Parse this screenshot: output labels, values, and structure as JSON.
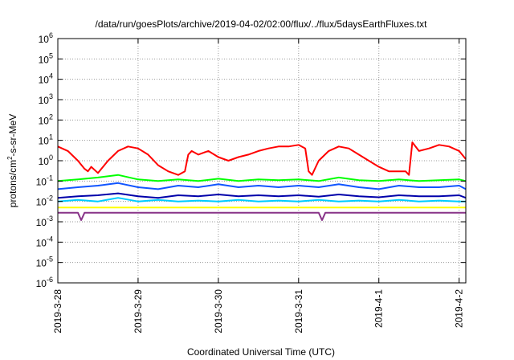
{
  "chart_data": {
    "type": "line",
    "title": "/data/run/goesPlots/archive/2019-04-02/02:00/flux/../flux/5daysEarthFluxes.txt",
    "xlabel": "Coordinated Universal Time (UTC)",
    "ylabel_parts": {
      "base": "protons/cm",
      "sup": "2",
      "rest": "-s-sr-MeV"
    },
    "x_scale": "time",
    "y_scale": "log",
    "xlim": [
      "2019-03-28 00:00",
      "2019-04-02 02:00"
    ],
    "ylim": [
      1e-06,
      1000000.0
    ],
    "grid": true,
    "legend": "none",
    "x_ticks": [
      {
        "date": "2019-03-28 00:00",
        "label": "2019-3-28"
      },
      {
        "date": "2019-03-29 00:00",
        "label": "2019-3-29"
      },
      {
        "date": "2019-03-30 00:00",
        "label": "2019-3-30"
      },
      {
        "date": "2019-03-31 00:00",
        "label": "2019-3-31"
      },
      {
        "date": "2019-04-01 00:00",
        "label": "2019-4-1"
      },
      {
        "date": "2019-04-02 00:00",
        "label": "2019-4-2"
      }
    ],
    "y_ticks": [
      {
        "value": 1000000.0,
        "base": "10",
        "exp": "6"
      },
      {
        "value": 100000.0,
        "base": "10",
        "exp": "5"
      },
      {
        "value": 10000.0,
        "base": "10",
        "exp": "4"
      },
      {
        "value": 1000.0,
        "base": "10",
        "exp": "3"
      },
      {
        "value": 100.0,
        "base": "10",
        "exp": "2"
      },
      {
        "value": 10.0,
        "base": "10",
        "exp": "1"
      },
      {
        "value": 1.0,
        "base": "10",
        "exp": "0"
      },
      {
        "value": 0.1,
        "base": "10",
        "exp": "-1"
      },
      {
        "value": 0.01,
        "base": "10",
        "exp": "-2"
      },
      {
        "value": 0.001,
        "base": "10",
        "exp": "-3"
      },
      {
        "value": 0.0001,
        "base": "10",
        "exp": "-4"
      },
      {
        "value": 1e-05,
        "base": "10",
        "exp": "-5"
      },
      {
        "value": 1e-06,
        "base": "10",
        "exp": "-6"
      }
    ],
    "series": [
      {
        "color": "#ff0000",
        "x": [
          "2019-03-28 00:00",
          "2019-03-28 03:00",
          "2019-03-28 06:00",
          "2019-03-28 08:00",
          "2019-03-28 09:00",
          "2019-03-28 10:00",
          "2019-03-28 12:00",
          "2019-03-28 15:00",
          "2019-03-28 18:00",
          "2019-03-28 21:00",
          "2019-03-29 00:00",
          "2019-03-29 03:00",
          "2019-03-29 06:00",
          "2019-03-29 09:00",
          "2019-03-29 12:00",
          "2019-03-29 14:00",
          "2019-03-29 15:00",
          "2019-03-29 16:00",
          "2019-03-29 18:00",
          "2019-03-29 21:00",
          "2019-03-30 00:00",
          "2019-03-30 03:00",
          "2019-03-30 06:00",
          "2019-03-30 09:00",
          "2019-03-30 12:00",
          "2019-03-30 15:00",
          "2019-03-30 18:00",
          "2019-03-30 21:00",
          "2019-03-31 00:00",
          "2019-03-31 02:00",
          "2019-03-31 03:00",
          "2019-03-31 04:00",
          "2019-03-31 06:00",
          "2019-03-31 09:00",
          "2019-03-31 12:00",
          "2019-03-31 15:00",
          "2019-03-31 18:00",
          "2019-03-31 21:00",
          "2019-04-01 00:00",
          "2019-04-01 03:00",
          "2019-04-01 06:00",
          "2019-04-01 08:00",
          "2019-04-01 09:00",
          "2019-04-01 10:00",
          "2019-04-01 12:00",
          "2019-04-01 15:00",
          "2019-04-01 18:00",
          "2019-04-01 21:00",
          "2019-04-02 00:00",
          "2019-04-02 02:00"
        ],
        "values": [
          5,
          3,
          1,
          0.4,
          0.3,
          0.5,
          0.25,
          1,
          3,
          5,
          4,
          2,
          0.6,
          0.3,
          0.2,
          0.3,
          2,
          3,
          2,
          3,
          1.5,
          1,
          1.5,
          2,
          3,
          4,
          5,
          5,
          6,
          4,
          0.3,
          0.2,
          1,
          3,
          5,
          4,
          2,
          1,
          0.5,
          0.3,
          0.3,
          0.3,
          0.2,
          8,
          3,
          4,
          6,
          5,
          3,
          1.2
        ]
      },
      {
        "color": "#00ff00",
        "x": [
          "2019-03-28 00:00",
          "2019-03-28 06:00",
          "2019-03-28 12:00",
          "2019-03-28 18:00",
          "2019-03-29 00:00",
          "2019-03-29 06:00",
          "2019-03-29 12:00",
          "2019-03-29 18:00",
          "2019-03-30 00:00",
          "2019-03-30 06:00",
          "2019-03-30 12:00",
          "2019-03-30 18:00",
          "2019-03-31 00:00",
          "2019-03-31 06:00",
          "2019-03-31 12:00",
          "2019-03-31 18:00",
          "2019-04-01 00:00",
          "2019-04-01 06:00",
          "2019-04-01 12:00",
          "2019-04-01 18:00",
          "2019-04-02 00:00",
          "2019-04-02 02:00"
        ],
        "values": [
          0.1,
          0.12,
          0.15,
          0.2,
          0.12,
          0.1,
          0.12,
          0.1,
          0.13,
          0.1,
          0.12,
          0.11,
          0.12,
          0.1,
          0.15,
          0.11,
          0.1,
          0.12,
          0.1,
          0.11,
          0.12,
          0.1
        ]
      },
      {
        "color": "#00ccff",
        "x": [
          "2019-03-28 00:00",
          "2019-03-28 06:00",
          "2019-03-28 12:00",
          "2019-03-28 18:00",
          "2019-03-29 00:00",
          "2019-03-29 06:00",
          "2019-03-29 12:00",
          "2019-03-29 18:00",
          "2019-03-30 00:00",
          "2019-03-30 06:00",
          "2019-03-30 12:00",
          "2019-03-30 18:00",
          "2019-03-31 00:00",
          "2019-03-31 06:00",
          "2019-03-31 12:00",
          "2019-03-31 18:00",
          "2019-04-01 00:00",
          "2019-04-01 06:00",
          "2019-04-01 12:00",
          "2019-04-01 18:00",
          "2019-04-02 00:00",
          "2019-04-02 02:00"
        ],
        "values": [
          0.01,
          0.012,
          0.01,
          0.015,
          0.01,
          0.012,
          0.01,
          0.011,
          0.01,
          0.012,
          0.01,
          0.011,
          0.01,
          0.012,
          0.01,
          0.011,
          0.01,
          0.012,
          0.01,
          0.011,
          0.01,
          0.01
        ]
      },
      {
        "color": "#1155ff",
        "x": [
          "2019-03-28 00:00",
          "2019-03-28 06:00",
          "2019-03-28 12:00",
          "2019-03-28 18:00",
          "2019-03-29 00:00",
          "2019-03-29 06:00",
          "2019-03-29 12:00",
          "2019-03-29 18:00",
          "2019-03-30 00:00",
          "2019-03-30 06:00",
          "2019-03-30 12:00",
          "2019-03-30 18:00",
          "2019-03-31 00:00",
          "2019-03-31 06:00",
          "2019-03-31 12:00",
          "2019-03-31 18:00",
          "2019-04-01 00:00",
          "2019-04-01 06:00",
          "2019-04-01 12:00",
          "2019-04-01 18:00",
          "2019-04-02 00:00",
          "2019-04-02 02:00"
        ],
        "values": [
          0.04,
          0.05,
          0.06,
          0.08,
          0.05,
          0.04,
          0.06,
          0.05,
          0.07,
          0.05,
          0.06,
          0.05,
          0.06,
          0.05,
          0.07,
          0.05,
          0.04,
          0.06,
          0.05,
          0.05,
          0.06,
          0.04
        ]
      },
      {
        "color": "#0000aa",
        "x": [
          "2019-03-28 00:00",
          "2019-03-28 06:00",
          "2019-03-28 12:00",
          "2019-03-28 18:00",
          "2019-03-29 00:00",
          "2019-03-29 06:00",
          "2019-03-29 12:00",
          "2019-03-29 18:00",
          "2019-03-30 00:00",
          "2019-03-30 06:00",
          "2019-03-30 12:00",
          "2019-03-30 18:00",
          "2019-03-31 00:00",
          "2019-03-31 06:00",
          "2019-03-31 12:00",
          "2019-03-31 18:00",
          "2019-04-01 00:00",
          "2019-04-01 06:00",
          "2019-04-01 12:00",
          "2019-04-01 18:00",
          "2019-04-02 00:00",
          "2019-04-02 02:00"
        ],
        "values": [
          0.015,
          0.018,
          0.02,
          0.025,
          0.018,
          0.015,
          0.02,
          0.018,
          0.022,
          0.018,
          0.02,
          0.018,
          0.02,
          0.017,
          0.022,
          0.018,
          0.016,
          0.02,
          0.018,
          0.018,
          0.02,
          0.015
        ]
      },
      {
        "color": "#ffff00",
        "x": [
          "2019-03-28 00:00",
          "2019-03-29 00:00",
          "2019-03-30 00:00",
          "2019-03-31 00:00",
          "2019-04-01 00:00",
          "2019-04-02 00:00",
          "2019-04-02 02:00"
        ],
        "values": [
          0.005,
          0.005,
          0.005,
          0.005,
          0.005,
          0.005,
          0.005
        ]
      },
      {
        "color": "#883388",
        "x": [
          "2019-03-28 00:00",
          "2019-03-28 06:00",
          "2019-03-28 07:00",
          "2019-03-28 08:00",
          "2019-03-28 12:00",
          "2019-03-28 18:00",
          "2019-03-29 00:00",
          "2019-03-29 06:00",
          "2019-03-29 12:00",
          "2019-03-29 18:00",
          "2019-03-30 00:00",
          "2019-03-30 06:00",
          "2019-03-30 12:00",
          "2019-03-30 18:00",
          "2019-03-31 00:00",
          "2019-03-31 06:00",
          "2019-03-31 07:00",
          "2019-03-31 08:00",
          "2019-03-31 12:00",
          "2019-03-31 18:00",
          "2019-04-01 00:00",
          "2019-04-01 06:00",
          "2019-04-01 12:00",
          "2019-04-01 18:00",
          "2019-04-02 00:00",
          "2019-04-02 02:00"
        ],
        "values": [
          0.0028,
          0.0028,
          0.0012,
          0.0028,
          0.0028,
          0.0028,
          0.0028,
          0.0028,
          0.0028,
          0.0028,
          0.0028,
          0.0028,
          0.0028,
          0.0028,
          0.0028,
          0.0028,
          0.0012,
          0.0028,
          0.0028,
          0.0028,
          0.0028,
          0.0028,
          0.0028,
          0.0028,
          0.0028,
          0.0028
        ]
      }
    ]
  }
}
